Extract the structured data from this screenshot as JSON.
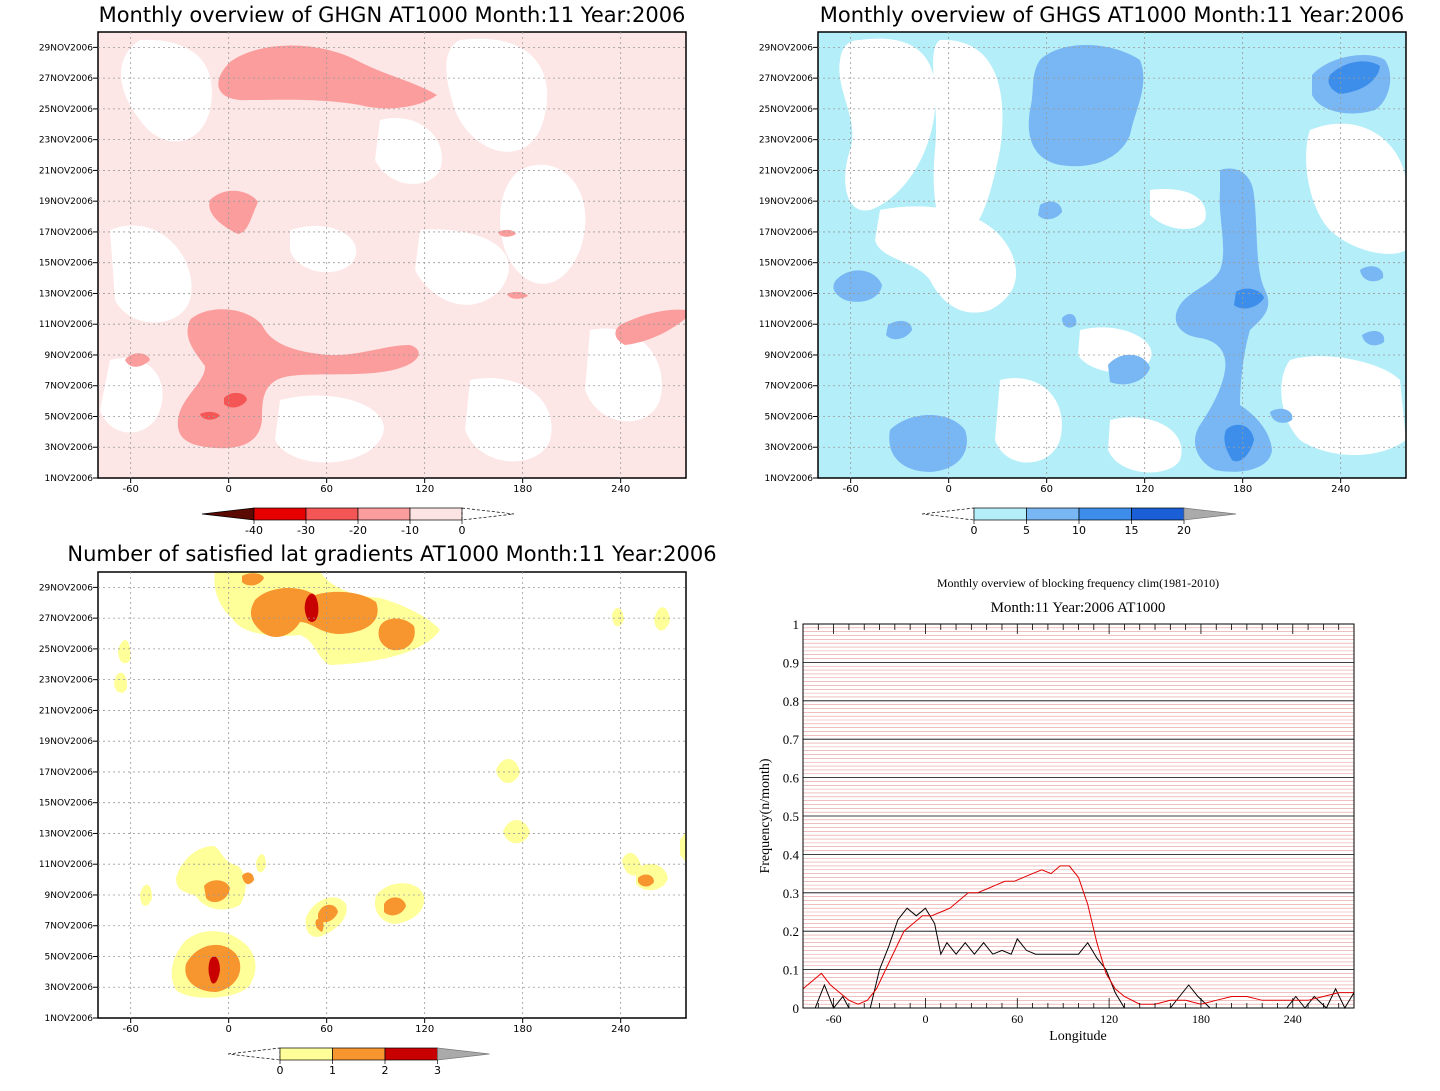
{
  "panels": {
    "ghgn": {
      "title": "Monthly overview of GHGN AT1000 Month:11 Year:2006",
      "colorbar": {
        "ticks": [
          "-40",
          "-30",
          "-20",
          "-10",
          "0"
        ],
        "colors": [
          "#5a0a00",
          "#e60000",
          "#f45555",
          "#fb9d9d",
          "#fde4e4"
        ]
      }
    },
    "ghgs": {
      "title": "Monthly overview of GHGS AT1000 Month:11 Year:2006",
      "colorbar": {
        "ticks": [
          "0",
          "5",
          "10",
          "15",
          "20"
        ],
        "colors": [
          "#b4eef8",
          "#78b6f4",
          "#3c8eea",
          "#1a5fd6",
          "#aaaaaa"
        ]
      }
    },
    "lat": {
      "title": "Number of satisfied lat gradients AT1000 Month:11 Year:2006",
      "colorbar": {
        "ticks": [
          "0",
          "1",
          "2",
          "3"
        ],
        "colors": [
          "#ffff99",
          "#f7952f",
          "#c80000",
          "#aaaaaa"
        ]
      }
    },
    "freq": {
      "title": "Monthly overview of blocking frequency clim(1981-2010)",
      "subtitle": "Month:11 Year:2006  AT1000",
      "xlabel": "Longitude",
      "ylabel": "Frequency(n/month)"
    }
  },
  "axes": {
    "date_ticks": [
      "1NOV2006",
      "3NOV2006",
      "5NOV2006",
      "7NOV2006",
      "9NOV2006",
      "11NOV2006",
      "13NOV2006",
      "15NOV2006",
      "17NOV2006",
      "19NOV2006",
      "21NOV2006",
      "23NOV2006",
      "25NOV2006",
      "27NOV2006",
      "29NOV2006"
    ],
    "lon_ticks": [
      "-60",
      "0",
      "60",
      "120",
      "180",
      "240"
    ]
  },
  "chart_data": [
    {
      "type": "heatmap",
      "title": "Monthly overview of GHGN AT1000 Month:11 Year:2006",
      "xlim": [
        -80,
        280
      ],
      "ylim": [
        "1NOV2006",
        "30NOV2006"
      ],
      "levels": [
        -40,
        -30,
        -20,
        -10,
        0
      ],
      "regions": [
        {
          "level": -20,
          "lon": [
            -5,
            125
          ],
          "date": [
            "25NOV2006",
            "29NOV2006"
          ]
        },
        {
          "level": -20,
          "lon": [
            -15,
            115
          ],
          "date": [
            "4NOV2006",
            "12NOV2006"
          ]
        },
        {
          "level": -20,
          "lon": [
            -5,
            15
          ],
          "date": [
            "17NOV2006",
            "20NOV2006"
          ]
        },
        {
          "level": -20,
          "lon": [
            240,
            275
          ],
          "date": [
            "9NOV2006",
            "12NOV2006"
          ]
        },
        {
          "level": -30,
          "lon": [
            -20,
            20
          ],
          "date": [
            "4NOV2006",
            "6NOV2006"
          ]
        }
      ]
    },
    {
      "type": "heatmap",
      "title": "Monthly overview of GHGS AT1000 Month:11 Year:2006",
      "xlim": [
        -80,
        280
      ],
      "ylim": [
        "1NOV2006",
        "30NOV2006"
      ],
      "levels": [
        0,
        5,
        10,
        15,
        20
      ],
      "regions": [
        {
          "level": 5,
          "lon": [
            45,
            110
          ],
          "date": [
            "21NOV2006",
            "28NOV2006"
          ]
        },
        {
          "level": 5,
          "lon": [
            160,
            200
          ],
          "date": [
            "1NOV2006",
            "19NOV2006"
          ]
        },
        {
          "level": 5,
          "lon": [
            230,
            275
          ],
          "date": [
            "24NOV2006",
            "28NOV2006"
          ]
        },
        {
          "level": 5,
          "lon": [
            -35,
            10
          ],
          "date": [
            "1NOV2006",
            "4NOV2006"
          ]
        },
        {
          "level": 10,
          "lon": [
            175,
            195
          ],
          "date": [
            "11NOV2006",
            "13NOV2006"
          ]
        },
        {
          "level": 10,
          "lon": [
            245,
            265
          ],
          "date": [
            "25NOV2006",
            "27NOV2006"
          ]
        }
      ]
    },
    {
      "type": "heatmap",
      "title": "Number of satisfied lat gradients AT1000 Month:11 Year:2006",
      "xlim": [
        -80,
        280
      ],
      "ylim": [
        "1NOV2006",
        "30NOV2006"
      ],
      "levels": [
        0,
        1,
        2,
        3
      ],
      "regions": [
        {
          "level": 1,
          "lon": [
            15,
            130
          ],
          "date": [
            "25NOV2006",
            "30NOV2006"
          ]
        },
        {
          "level": 1,
          "lon": [
            -30,
            20
          ],
          "date": [
            "2NOV2006",
            "11NOV2006"
          ]
        },
        {
          "level": 2,
          "lon": [
            25,
            95
          ],
          "date": [
            "26NOV2006",
            "28NOV2006"
          ]
        },
        {
          "level": 2,
          "lon": [
            -25,
            5
          ],
          "date": [
            "3NOV2006",
            "6NOV2006"
          ]
        },
        {
          "level": 3,
          "lon": [
            45,
            50
          ],
          "date": [
            "26NOV2006",
            "28NOV2006"
          ]
        },
        {
          "level": 3,
          "lon": [
            -12,
            -6
          ],
          "date": [
            "3NOV2006",
            "5NOV2006"
          ]
        }
      ]
    },
    {
      "type": "line",
      "title": "Monthly overview of blocking frequency clim(1981-2010)",
      "subtitle": "Month:11 Year:2006  AT1000",
      "xlabel": "Longitude",
      "ylabel": "Frequency(n/month)",
      "xlim": [
        -80,
        280
      ],
      "ylim": [
        0,
        1
      ],
      "yticks": [
        "0",
        "0.1",
        "0.2",
        "0.3",
        "0.4",
        "0.5",
        "0.6",
        "0.7",
        "0.8",
        "0.9",
        "1"
      ],
      "grid": true,
      "series": [
        {
          "color": "#000000",
          "x": [
            -80,
            -72,
            -66,
            -60,
            -54,
            -50,
            -44,
            -36,
            -30,
            -24,
            -18,
            -12,
            -6,
            0,
            6,
            10,
            14,
            20,
            26,
            32,
            38,
            44,
            50,
            56,
            60,
            66,
            72,
            80,
            90,
            100,
            106,
            112,
            118,
            124,
            130,
            140,
            150,
            160,
            166,
            172,
            178,
            186,
            196,
            206,
            216,
            226,
            236,
            242,
            248,
            254,
            262,
            268,
            274,
            280
          ],
          "y": [
            0.0,
            0.0,
            0.06,
            0.0,
            0.03,
            0.0,
            0.0,
            0.0,
            0.1,
            0.16,
            0.23,
            0.26,
            0.24,
            0.26,
            0.22,
            0.14,
            0.17,
            0.14,
            0.17,
            0.14,
            0.17,
            0.14,
            0.15,
            0.14,
            0.18,
            0.15,
            0.14,
            0.14,
            0.14,
            0.14,
            0.17,
            0.13,
            0.1,
            0.04,
            0.0,
            0.0,
            0.0,
            0.0,
            0.03,
            0.06,
            0.03,
            0.0,
            0.0,
            0.0,
            0.0,
            0.0,
            0.0,
            0.03,
            0.0,
            0.03,
            0.0,
            0.05,
            0.0,
            0.04
          ]
        },
        {
          "color": "#e00000",
          "x": [
            -80,
            -74,
            -68,
            -62,
            -56,
            -50,
            -44,
            -38,
            -32,
            -26,
            -20,
            -14,
            -8,
            -2,
            4,
            10,
            16,
            22,
            28,
            34,
            40,
            46,
            52,
            58,
            64,
            70,
            76,
            82,
            88,
            94,
            100,
            106,
            112,
            118,
            124,
            130,
            140,
            150,
            160,
            170,
            180,
            190,
            200,
            210,
            220,
            230,
            240,
            250,
            260,
            270,
            280
          ],
          "y": [
            0.05,
            0.07,
            0.09,
            0.06,
            0.04,
            0.02,
            0.01,
            0.02,
            0.05,
            0.1,
            0.15,
            0.2,
            0.22,
            0.24,
            0.24,
            0.25,
            0.26,
            0.28,
            0.3,
            0.3,
            0.31,
            0.32,
            0.33,
            0.33,
            0.34,
            0.35,
            0.36,
            0.35,
            0.37,
            0.37,
            0.34,
            0.27,
            0.17,
            0.09,
            0.05,
            0.03,
            0.01,
            0.01,
            0.02,
            0.02,
            0.01,
            0.02,
            0.03,
            0.03,
            0.02,
            0.02,
            0.02,
            0.02,
            0.03,
            0.04,
            0.04
          ]
        }
      ]
    }
  ]
}
